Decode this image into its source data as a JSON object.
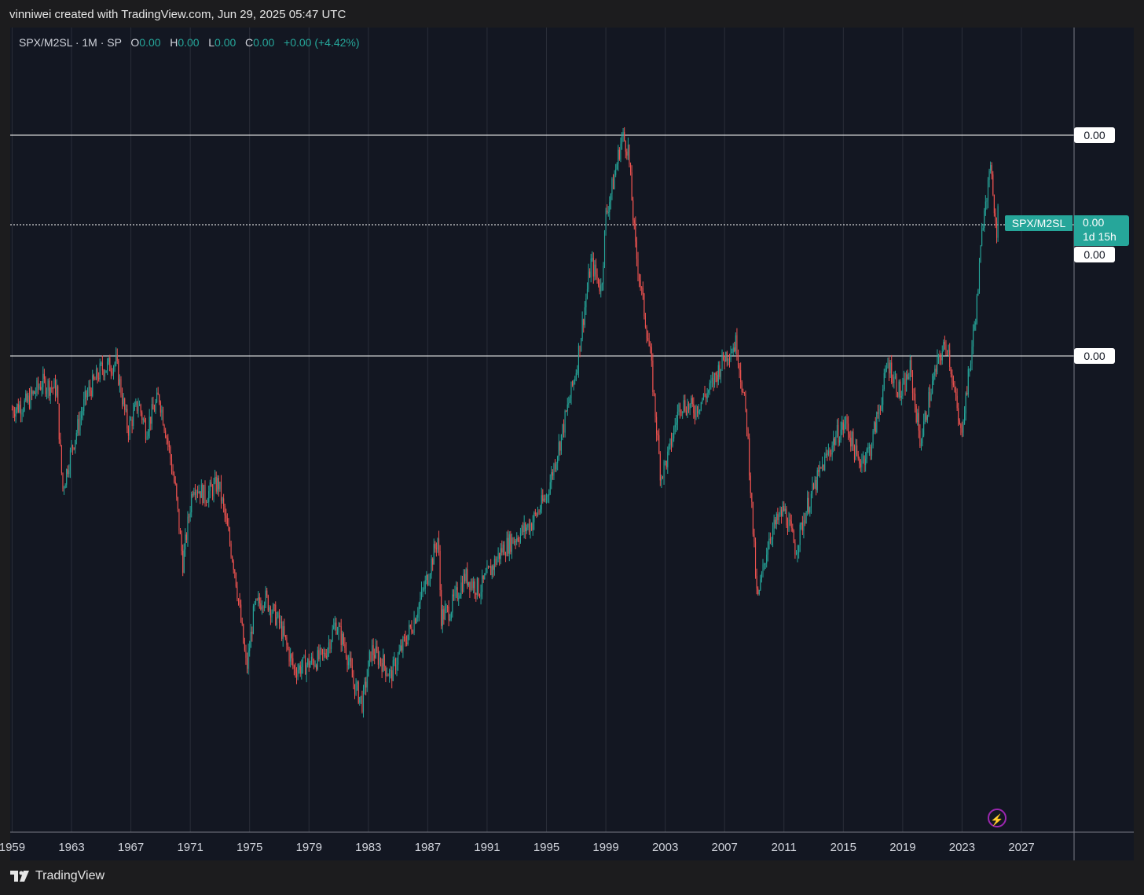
{
  "header": {
    "attribution": "vinniwei created with TradingView.com, Jun 29, 2025 05:47 UTC"
  },
  "legend": {
    "symbol": "SPX/M2SL · 1M · SP",
    "o_label": "O",
    "o_value": "0.00",
    "h_label": "H",
    "h_value": "0.00",
    "l_label": "L",
    "l_value": "0.00",
    "c_label": "C",
    "c_value": "0.00",
    "change": "+0.00 (+4.42%)"
  },
  "price_labels": {
    "top": "0.00",
    "mid": "0.00",
    "bottom": "0.00"
  },
  "last_price": {
    "symbol": "SPX/M2SL",
    "value": "0.00",
    "countdown": "1d 15h"
  },
  "footer": {
    "brand": "TradingView"
  },
  "icons": {
    "logo": "tradingview-logo-icon",
    "bolt": "lightning-bolt-icon"
  },
  "colors": {
    "up": "#26a69a",
    "down": "#ef5350",
    "background": "#131722",
    "grid": "#2a2e39",
    "accent": "#9c27b0"
  },
  "chart_data": {
    "type": "candlestick",
    "interval": "1M",
    "x_tick_labels": [
      "1959",
      "1963",
      "1967",
      "1971",
      "1975",
      "1979",
      "1983",
      "1987",
      "1991",
      "1995",
      "1999",
      "2003",
      "2007",
      "2011",
      "2015",
      "2019",
      "2023",
      "2027"
    ],
    "xlim": [
      1959,
      2029
    ],
    "y_axis_note": "price scale values shown as 0.00",
    "horizontal_levels": [
      "0.00",
      "0.00",
      "0.00"
    ],
    "series_close_shape": [
      [
        1959.0,
        0.54
      ],
      [
        1960.0,
        0.55
      ],
      [
        1961.0,
        0.58
      ],
      [
        1962.0,
        0.57
      ],
      [
        1962.4,
        0.42
      ],
      [
        1963.0,
        0.48
      ],
      [
        1964.0,
        0.56
      ],
      [
        1965.0,
        0.6
      ],
      [
        1966.0,
        0.61
      ],
      [
        1966.8,
        0.51
      ],
      [
        1967.5,
        0.55
      ],
      [
        1968.0,
        0.51
      ],
      [
        1968.9,
        0.56
      ],
      [
        1969.5,
        0.49
      ],
      [
        1970.0,
        0.42
      ],
      [
        1970.5,
        0.31
      ],
      [
        1971.2,
        0.43
      ],
      [
        1972.0,
        0.41
      ],
      [
        1972.9,
        0.43
      ],
      [
        1973.5,
        0.36
      ],
      [
        1974.0,
        0.3
      ],
      [
        1974.8,
        0.15
      ],
      [
        1975.3,
        0.24
      ],
      [
        1976.0,
        0.26
      ],
      [
        1977.0,
        0.22
      ],
      [
        1978.0,
        0.15
      ],
      [
        1979.0,
        0.16
      ],
      [
        1980.0,
        0.17
      ],
      [
        1980.8,
        0.22
      ],
      [
        1981.5,
        0.18
      ],
      [
        1982.0,
        0.13
      ],
      [
        1982.6,
        0.1
      ],
      [
        1983.2,
        0.18
      ],
      [
        1984.0,
        0.16
      ],
      [
        1984.5,
        0.14
      ],
      [
        1985.0,
        0.17
      ],
      [
        1986.0,
        0.22
      ],
      [
        1987.0,
        0.29
      ],
      [
        1987.7,
        0.35
      ],
      [
        1987.9,
        0.23
      ],
      [
        1988.5,
        0.24
      ],
      [
        1989.5,
        0.29
      ],
      [
        1990.5,
        0.27
      ],
      [
        1991.0,
        0.29
      ],
      [
        1992.0,
        0.33
      ],
      [
        1993.0,
        0.35
      ],
      [
        1994.0,
        0.37
      ],
      [
        1995.0,
        0.41
      ],
      [
        1996.0,
        0.5
      ],
      [
        1997.0,
        0.6
      ],
      [
        1998.0,
        0.76
      ],
      [
        1998.7,
        0.72
      ],
      [
        1999.0,
        0.83
      ],
      [
        1999.5,
        0.88
      ],
      [
        2000.1,
        0.95
      ],
      [
        2000.5,
        0.93
      ],
      [
        2001.0,
        0.78
      ],
      [
        2001.5,
        0.7
      ],
      [
        2002.0,
        0.62
      ],
      [
        2002.7,
        0.44
      ],
      [
        2003.2,
        0.47
      ],
      [
        2004.0,
        0.55
      ],
      [
        2005.0,
        0.54
      ],
      [
        2006.0,
        0.57
      ],
      [
        2007.0,
        0.62
      ],
      [
        2007.8,
        0.64
      ],
      [
        2008.5,
        0.52
      ],
      [
        2009.2,
        0.25
      ],
      [
        2010.0,
        0.35
      ],
      [
        2011.0,
        0.39
      ],
      [
        2011.8,
        0.33
      ],
      [
        2012.5,
        0.39
      ],
      [
        2013.5,
        0.45
      ],
      [
        2014.5,
        0.5
      ],
      [
        2015.2,
        0.52
      ],
      [
        2016.0,
        0.46
      ],
      [
        2016.8,
        0.48
      ],
      [
        2017.5,
        0.55
      ],
      [
        2018.0,
        0.61
      ],
      [
        2018.9,
        0.56
      ],
      [
        2019.5,
        0.6
      ],
      [
        2020.2,
        0.49
      ],
      [
        2020.8,
        0.56
      ],
      [
        2021.5,
        0.62
      ],
      [
        2022.0,
        0.64
      ],
      [
        2022.9,
        0.5
      ],
      [
        2023.5,
        0.6
      ],
      [
        2024.0,
        0.7
      ],
      [
        2024.5,
        0.85
      ],
      [
        2025.0,
        0.9
      ],
      [
        2025.3,
        0.8
      ],
      [
        2025.5,
        0.86
      ]
    ]
  }
}
